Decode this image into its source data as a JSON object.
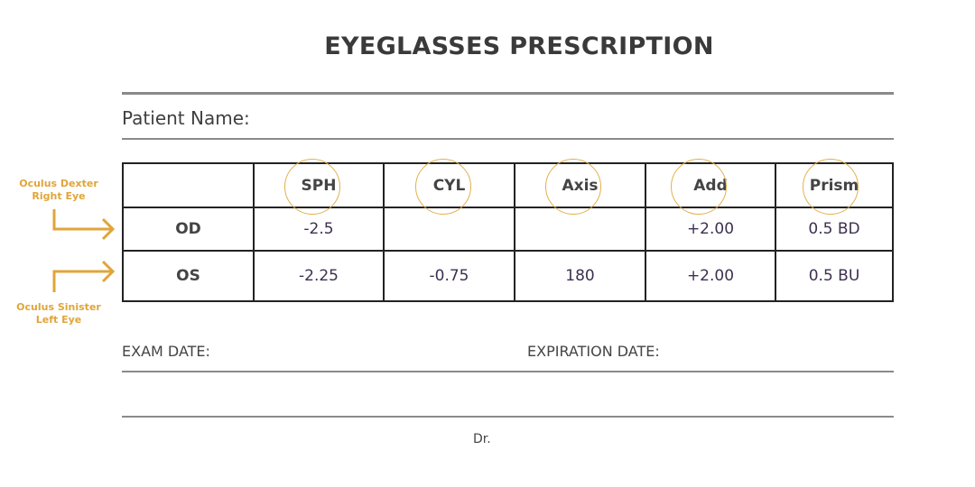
{
  "title": "EYEGLASSES PRESCRIPTION",
  "patient_name_label": "Patient Name:",
  "table": {
    "headers": [
      "",
      "SPH",
      "CYL",
      "Axis",
      "Add",
      "Prism"
    ],
    "rows": [
      [
        "OD",
        "-2.5",
        "",
        "",
        "+2.00",
        "0.5 BD"
      ],
      [
        "OS",
        "-2.25",
        "-0.75",
        "180",
        "+2.00",
        "0.5 BU"
      ]
    ]
  },
  "annotations": {
    "od": {
      "line1": "Oculus Dexter",
      "line2": "Right Eye"
    },
    "os": {
      "line1": "Oculus Sinister",
      "line2": "Left Eye"
    }
  },
  "exam_date_label": "EXAM DATE:",
  "expiration_date_label": "EXPIRATION DATE:",
  "doctor_label": "Dr.",
  "colors": {
    "accent": "#e0a53a",
    "text": "#3a3a3a",
    "values": "#3d3050"
  }
}
